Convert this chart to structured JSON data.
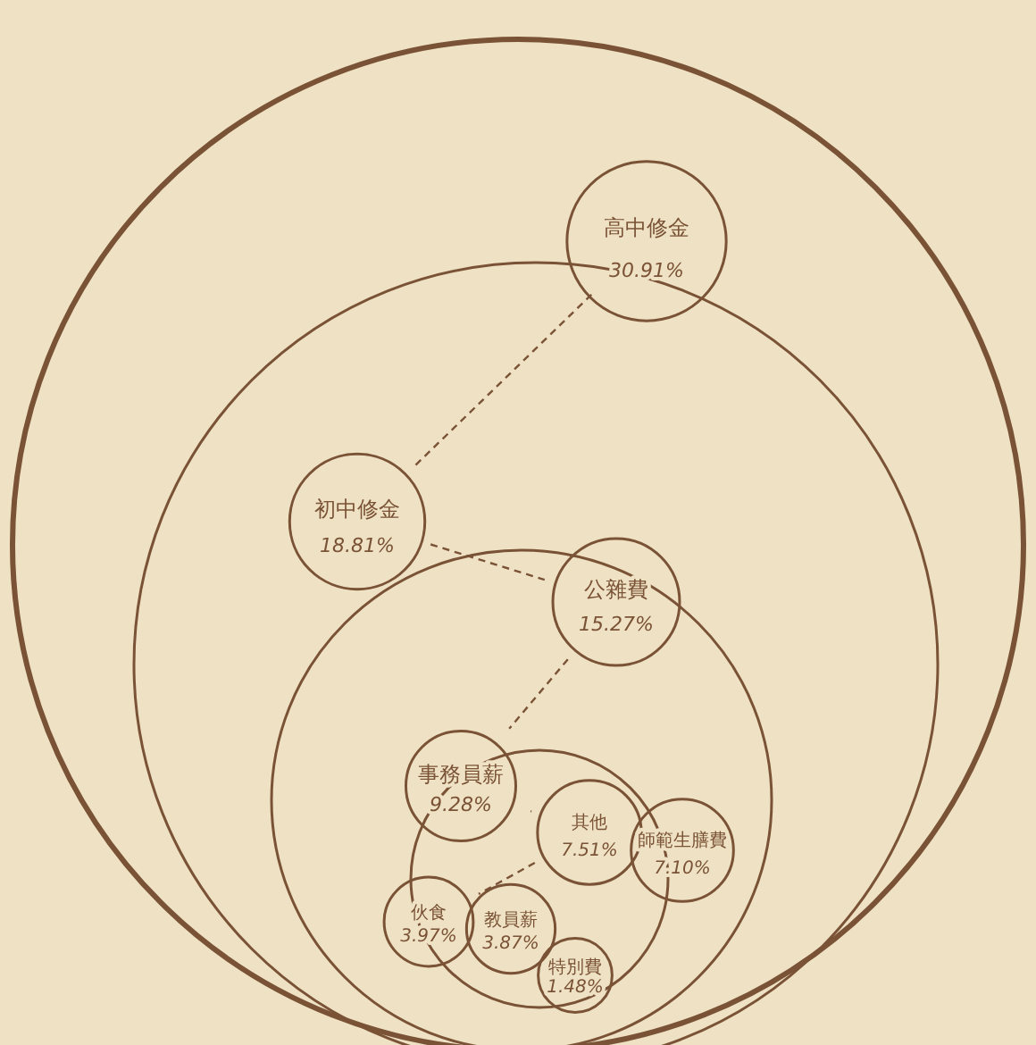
{
  "chart_data": {
    "type": "other",
    "categories": [
      "高中修金",
      "初中修金",
      "公雜費",
      "事務員薪",
      "其他",
      "師範生膳費",
      "伙食",
      "教員薪",
      "特別費"
    ],
    "values": [
      30.91,
      18.81,
      15.27,
      9.28,
      7.51,
      7.1,
      3.97,
      3.87,
      1.48
    ],
    "value_labels": [
      "30.91%",
      "18.81%",
      "15.27%",
      "9.28%",
      "7.51%",
      "7.10%",
      "3.97%",
      "3.87%",
      "1.48%"
    ],
    "color": "#7a5236"
  }
}
